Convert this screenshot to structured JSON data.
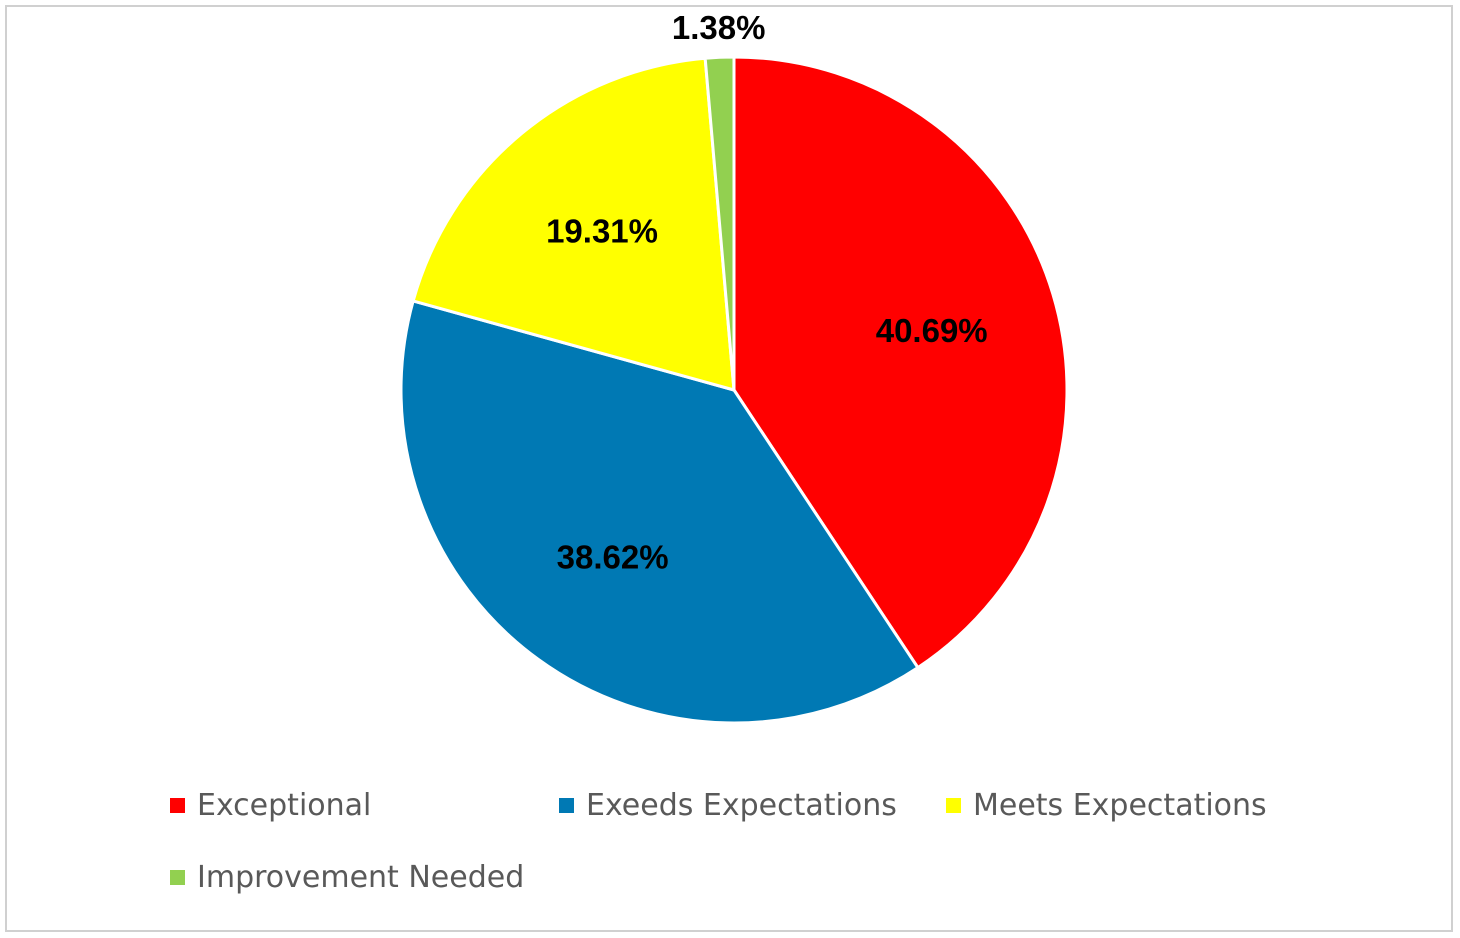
{
  "chart_data": {
    "type": "pie",
    "title": "",
    "categories": [
      "Exceptional",
      "Exeeds Expectations",
      "Meets Expectations",
      "Improvement Needed"
    ],
    "values": [
      40.69,
      38.62,
      19.31,
      1.38
    ],
    "data_labels": [
      "40.69%",
      "38.62%",
      "19.31%",
      "1.38%"
    ],
    "colors": [
      "#ff0000",
      "#0079b4",
      "#ffff00",
      "#92d050"
    ],
    "legend_position": "bottom",
    "start_angle": "top, clockwise"
  }
}
